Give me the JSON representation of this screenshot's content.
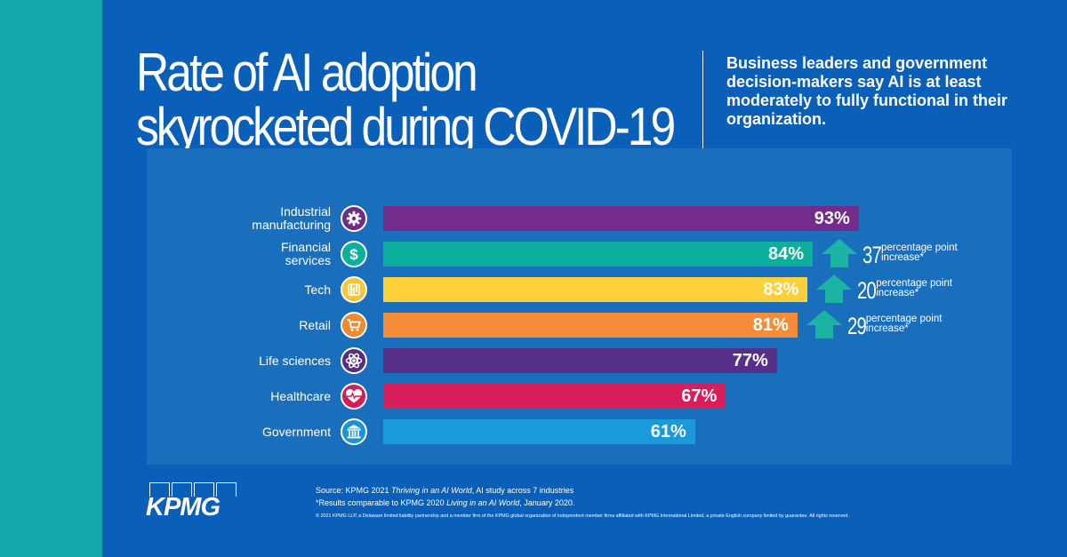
{
  "title_lines": [
    "Rate of AI adoption",
    "skyrocketed during COVID-19"
  ],
  "subtitle": "Business leaders and government decision-makers say AI is at least moderately to fully functional in their organization.",
  "chart_data": {
    "type": "bar",
    "orientation": "horizontal",
    "categories": [
      {
        "label_lines": [
          "Industrial",
          "manufacturing"
        ],
        "icon": "gear-icon",
        "icon_color": "#6d2b8a",
        "value": 93,
        "value_label": "93%",
        "color": "#732c8b"
      },
      {
        "label_lines": [
          "Financial",
          "services"
        ],
        "icon": "dollar-icon",
        "icon_color": "#0cae9c",
        "value": 84,
        "value_label": "84%",
        "color": "#0cae9c"
      },
      {
        "label_lines": [
          "Tech"
        ],
        "icon": "chip-icon",
        "icon_color": "#f7c630",
        "value": 83,
        "value_label": "83%",
        "color": "#fdd03a"
      },
      {
        "label_lines": [
          "Retail"
        ],
        "icon": "cart-icon",
        "icon_color": "#f08a2e",
        "value": 81,
        "value_label": "81%",
        "color": "#f58c38"
      },
      {
        "label_lines": [
          "Life sciences"
        ],
        "icon": "atom-icon",
        "icon_color": "#552d82",
        "value": 77,
        "value_label": "77%",
        "color": "#563088"
      },
      {
        "label_lines": [
          "Healthcare"
        ],
        "icon": "heart-icon",
        "icon_color": "#d21e57",
        "value": 67,
        "value_label": "67%",
        "color": "#d71e5a"
      },
      {
        "label_lines": [
          "Government"
        ],
        "icon": "bank-icon",
        "icon_color": "#1894d6",
        "value": 61,
        "value_label": "61%",
        "color": "#189adb"
      }
    ],
    "increases": [
      {
        "category": "Financial services",
        "points": "37",
        "text_lines": [
          "percentage point",
          "increase*"
        ]
      },
      {
        "category": "Tech",
        "points": "20",
        "text_lines": [
          "percentage point",
          "increase*"
        ]
      },
      {
        "category": "Retail",
        "points": "29",
        "text_lines": [
          "percentage point",
          "increase*"
        ]
      }
    ],
    "arrow_color": "#1bb4a2",
    "xlim": [
      0,
      100
    ]
  },
  "logo": "KPMG",
  "source": {
    "line1_prefix": "Source: KPMG 2021 ",
    "line1_italic": "Thriving in an AI World",
    "line1_suffix": ", AI study across 7 industries",
    "line2_prefix": "*Results comparable to KPMG 2020 ",
    "line2_italic": "Living in an AI World",
    "line2_suffix": ", January 2020.",
    "line3": "© 2021 KPMG LLP, a Delaware limited liability partnership and a member firm of the KPMG global organization of independent member firms affiliated with KPMG International Limited, a private English company limited by guarantee. All rights reserved."
  },
  "colors": {
    "background": "#0a5fb8",
    "stripe": "#15a7a9",
    "panel": "#1a6fbd"
  }
}
